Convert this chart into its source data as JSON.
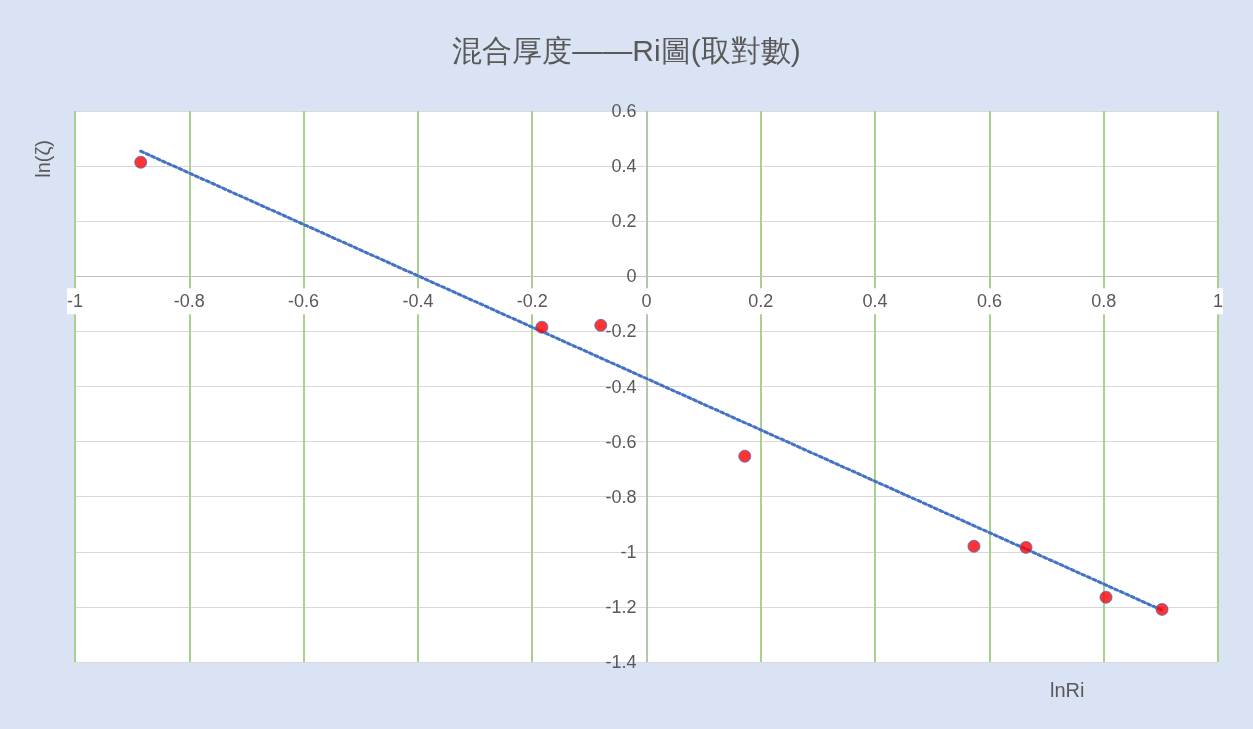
{
  "chart_data": {
    "type": "scatter",
    "title": "混合厚度——Ri圖(取對數)",
    "xlabel": "lnRi",
    "ylabel": "ln(ζ)",
    "xlim": [
      -1,
      1
    ],
    "xticks": [
      -1,
      -0.8,
      -0.6,
      -0.4,
      -0.2,
      0,
      0.2,
      0.4,
      0.6,
      0.8,
      1
    ],
    "ylim": [
      -1.4,
      0.6
    ],
    "yticks": [
      -1.4,
      -1.2,
      -1,
      -0.8,
      -0.6,
      -0.4,
      -0.2,
      0,
      0.2,
      0.4,
      0.6
    ],
    "grid": true,
    "marker": "circle",
    "series": [
      {
        "color": "#ff0000",
        "x": [
          -0.885,
          -0.183,
          -0.08,
          0.172,
          0.573,
          0.664,
          0.804,
          0.902
        ],
        "values": [
          0.414,
          -0.185,
          -0.178,
          -0.653,
          -0.98,
          -0.984,
          -1.165,
          -1.209
        ]
      },
      {
        "type": "line",
        "color": "#4472c4",
        "line_style": "dotted",
        "marker": "none",
        "x": [
          -0.885,
          0.902
        ],
        "values": [
          0.454,
          -1.212
        ]
      }
    ]
  }
}
